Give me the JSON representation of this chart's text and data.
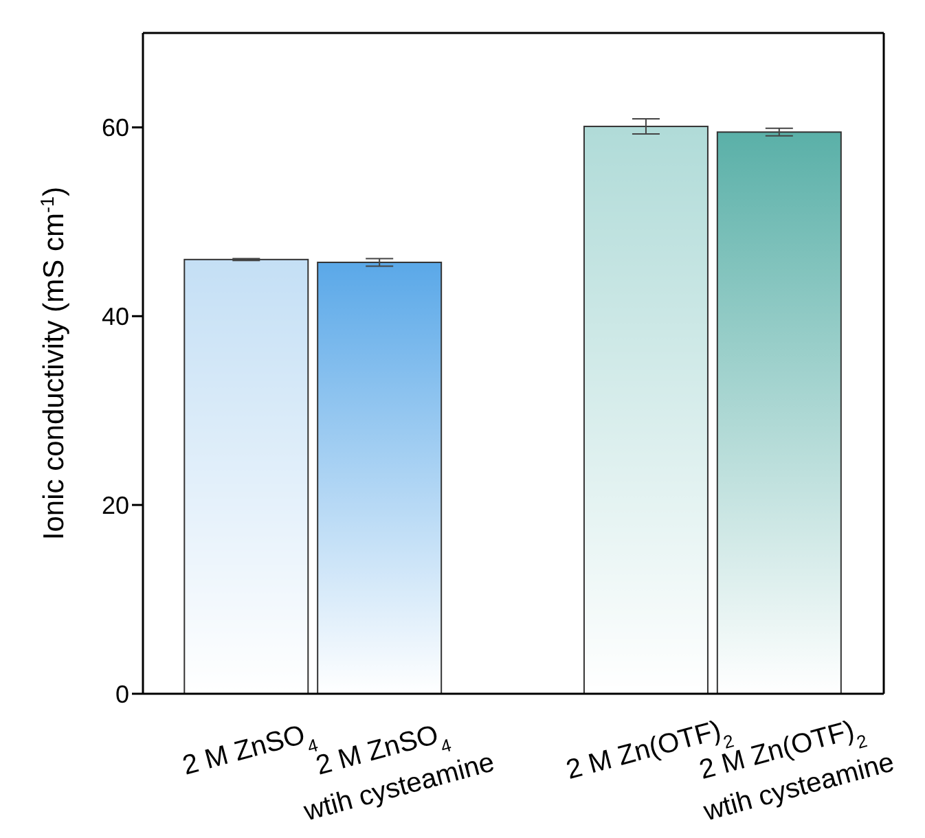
{
  "chart_data": {
    "type": "bar",
    "ylabel": "Ionic conductivity (mS cm$^{-1}$)",
    "categories": [
      "2 M ZnSO$_{4}$",
      "2 M ZnSO$_{4}$\nwtih cysteamine",
      "2 M Zn(OTF)$_{2}$",
      "2 M Zn(OTF)$_{2}$\nwtih cysteamine"
    ],
    "values": [
      46.0,
      45.7,
      60.1,
      59.5
    ],
    "errors": [
      0.1,
      0.4,
      0.8,
      0.4
    ],
    "colors": [
      "#c4dff5",
      "#5aa8e8",
      "#b0dbd8",
      "#5ab0a8"
    ],
    "ylim": [
      0,
      70
    ],
    "yticks": [
      0,
      20,
      40,
      60
    ]
  }
}
